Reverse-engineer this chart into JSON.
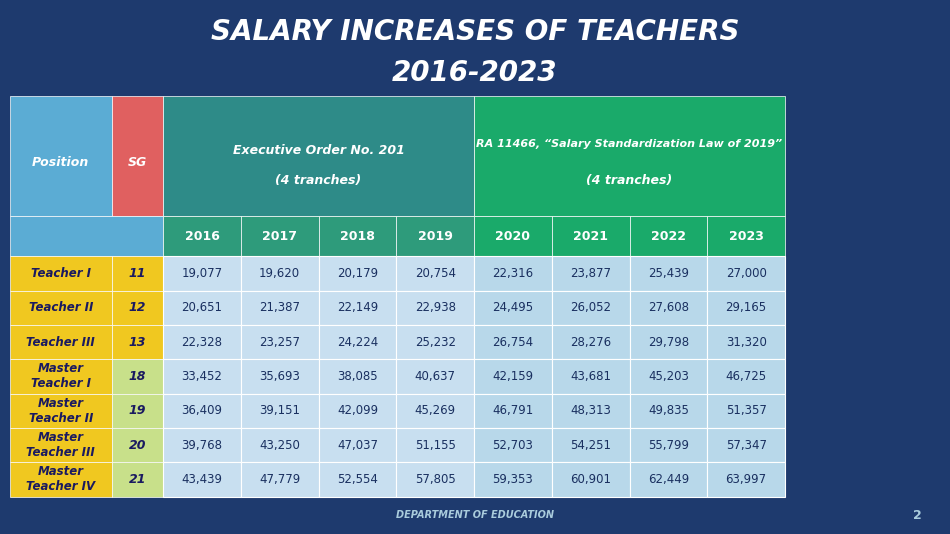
{
  "title_line1": "SALARY INCREASES OF TEACHERS",
  "title_line2": "2016-2023",
  "title_bg_color": "#1e3a6e",
  "title_text_color": "#ffffff",
  "header1_text": "Executive Order No. 201\n(4 tranches)",
  "header2_text": "RA 11466, “Salary Standardization Law of 2019”\n(4 tranches)",
  "header_bg_color": "#2e8b8b",
  "header2_bg_color": "#1aaa6e",
  "year_row_bg": "#2e9b7b",
  "years": [
    "2016",
    "2017",
    "2018",
    "2019",
    "2020",
    "2021",
    "2022",
    "2023"
  ],
  "position_col_bg": "#5bacd4",
  "sg_col_bg": "#e06060",
  "col_header_bg": "#2e8b8b",
  "positions": [
    "Teacher I",
    "Teacher II",
    "Teacher III",
    "Master\nTeacher I",
    "Master\nTeacher II",
    "Master\nTeacher III",
    "Master\nTeacher IV"
  ],
  "sg_values": [
    "11",
    "12",
    "13",
    "18",
    "19",
    "20",
    "21"
  ],
  "row_label_colors": [
    "#f5c518",
    "#f5c518",
    "#f5c518",
    "#f5c518",
    "#f5c518",
    "#f5c518",
    "#f5c518"
  ],
  "row_data_bg_odd": "#c8e0f4",
  "row_data_bg_even": "#ddeef8",
  "eo_data_bg": "#c8e0f4",
  "ra_data_bg": "#b0d0e8",
  "data": [
    [
      19077,
      19620,
      20179,
      20754,
      22316,
      23877,
      25439,
      27000
    ],
    [
      20651,
      21387,
      22149,
      22938,
      24495,
      26052,
      27608,
      29165
    ],
    [
      22328,
      23257,
      24224,
      25232,
      26754,
      28276,
      29798,
      31320
    ],
    [
      33452,
      35693,
      38085,
      40637,
      42159,
      43681,
      45203,
      46725
    ],
    [
      36409,
      39151,
      42099,
      45269,
      46791,
      48313,
      49835,
      51357
    ],
    [
      39768,
      43250,
      47037,
      51155,
      52703,
      54251,
      55799,
      57347
    ],
    [
      43439,
      47779,
      52554,
      57805,
      59353,
      60901,
      62449,
      63997
    ]
  ],
  "footer_text": "DEPARTMENT OF EDUCATION",
  "footer_page": "2",
  "footer_bg": "#1e3a6e",
  "footer_text_color": "#aaccdd"
}
